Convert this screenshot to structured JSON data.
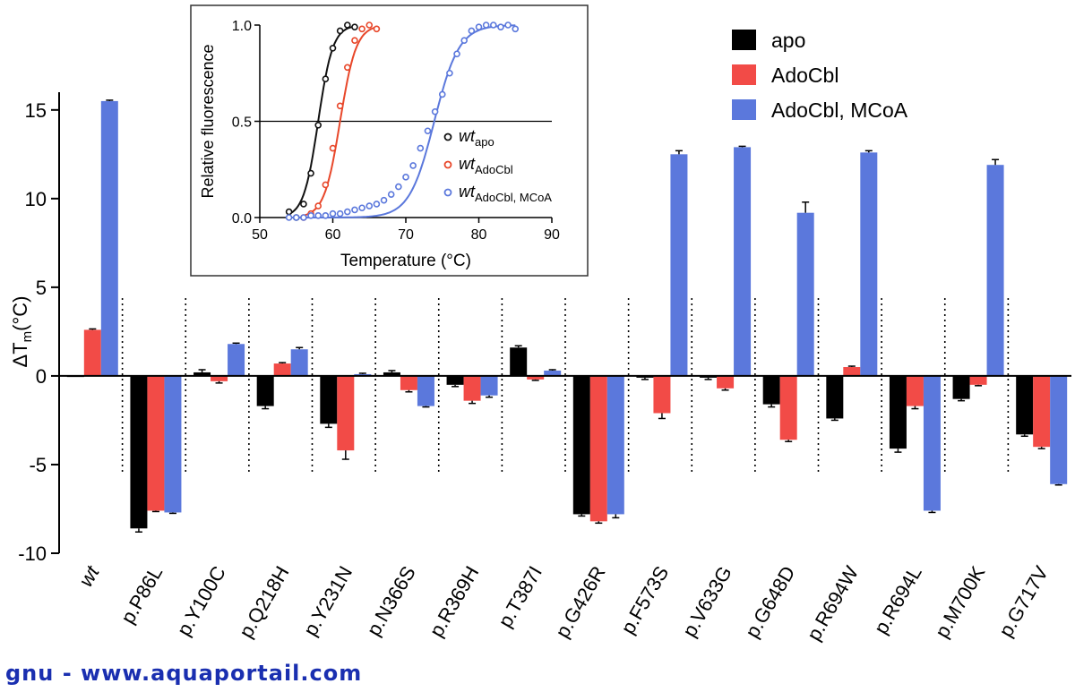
{
  "chart_data": [
    {
      "type": "bar",
      "ylabel_prefix": "ΔT",
      "ylabel_sub": "m",
      "ylabel_suffix": "(°C)",
      "ylim": [
        -10,
        16
      ],
      "yticks": [
        -10,
        -5,
        0,
        5,
        10,
        15
      ],
      "categories": [
        "wt",
        "p.P86L",
        "p.Y100C",
        "p.Q218H",
        "p.Y231N",
        "p.N366S",
        "p.R369H",
        "p.T387I",
        "p.G426R",
        "p.F573S",
        "p.V633G",
        "p.G648D",
        "p.R694W",
        "p.R694L",
        "p.M700K",
        "p.G717V"
      ],
      "italic_categories": [
        "wt"
      ],
      "series": [
        {
          "name": "apo",
          "color": "#000000",
          "values": [
            0,
            -8.6,
            0.2,
            -1.7,
            -2.7,
            0.2,
            -0.5,
            1.6,
            -7.8,
            -0.1,
            -0.1,
            -1.6,
            -2.4,
            -4.1,
            -1.3,
            -3.3
          ],
          "errors": [
            0,
            0.2,
            0.15,
            0.15,
            0.2,
            0.1,
            0.1,
            0.1,
            0.1,
            0.1,
            0.1,
            0.15,
            0.1,
            0.2,
            0.1,
            0.1
          ]
        },
        {
          "name": "AdoCbl",
          "color": "#f24b47",
          "values": [
            2.6,
            -7.6,
            -0.3,
            0.7,
            -4.2,
            -0.8,
            -1.4,
            -0.2,
            -8.2,
            -2.1,
            -0.7,
            -3.6,
            0.5,
            -1.7,
            -0.5,
            -4.0
          ],
          "errors": [
            0.05,
            0.05,
            0.1,
            0.05,
            0.5,
            0.1,
            0.15,
            0.05,
            0.1,
            0.3,
            0.1,
            0.1,
            0.05,
            0.15,
            0.05,
            0.1
          ]
        },
        {
          "name": "AdoCbl, MCoA",
          "color": "#5b78dc",
          "values": [
            15.5,
            -7.7,
            1.8,
            1.5,
            0.1,
            -1.7,
            -1.1,
            0.3,
            -7.8,
            12.5,
            12.9,
            9.2,
            12.6,
            -7.6,
            11.9,
            -6.1
          ],
          "errors": [
            0.05,
            0.05,
            0.05,
            0.1,
            0.05,
            0.05,
            0.1,
            0.05,
            0.2,
            0.2,
            0.05,
            0.6,
            0.1,
            0.1,
            0.3,
            0.05
          ]
        }
      ],
      "legend_position": "top-right",
      "separators": "dotted"
    },
    {
      "type": "scatter",
      "inset": true,
      "xlabel": "Temperature (°C)",
      "ylabel": "Relative fluorescence",
      "xlim": [
        50,
        90
      ],
      "ylim": [
        0,
        1
      ],
      "xticks": [
        50,
        60,
        70,
        80,
        90
      ],
      "yticks": [
        "0.0",
        "0.5",
        "1.0"
      ],
      "reference_line_y": 0.5,
      "series": [
        {
          "label": "wt",
          "sub": "apo",
          "color": "#111111",
          "tm": 58.0,
          "slope": 1.0,
          "x": [
            54,
            55,
            56,
            57,
            58,
            59,
            60,
            61,
            62,
            63
          ],
          "y": [
            0.03,
            0.0,
            0.07,
            0.23,
            0.48,
            0.72,
            0.88,
            0.97,
            1.0,
            0.99
          ]
        },
        {
          "label": "wt",
          "sub": "AdoCbl",
          "color": "#e8472a",
          "tm": 61.0,
          "slope": 1.1,
          "x": [
            56,
            57,
            58,
            59,
            60,
            61,
            62,
            63,
            64,
            65,
            66
          ],
          "y": [
            0.0,
            0.02,
            0.06,
            0.17,
            0.36,
            0.58,
            0.78,
            0.92,
            0.98,
            1.0,
            0.98
          ]
        },
        {
          "label": "wt",
          "sub": "AdoCbl, MCoA",
          "color": "#5b78dc",
          "tm": 73.9,
          "slope": 1.7,
          "x": [
            54,
            55,
            56,
            57,
            58,
            59,
            60,
            61,
            62,
            63,
            64,
            65,
            66,
            67,
            68,
            69,
            70,
            71,
            72,
            73,
            74,
            75,
            76,
            77,
            78,
            79,
            80,
            81,
            82,
            83,
            84,
            85
          ],
          "y": [
            0.0,
            0.0,
            0.0,
            0.01,
            0.01,
            0.01,
            0.02,
            0.02,
            0.03,
            0.04,
            0.05,
            0.06,
            0.07,
            0.09,
            0.12,
            0.16,
            0.21,
            0.27,
            0.36,
            0.45,
            0.55,
            0.64,
            0.75,
            0.85,
            0.92,
            0.97,
            0.99,
            1.0,
            1.0,
            0.99,
            1.0,
            0.98
          ]
        }
      ]
    }
  ],
  "watermark": "gnu - www.aquaportail.com"
}
